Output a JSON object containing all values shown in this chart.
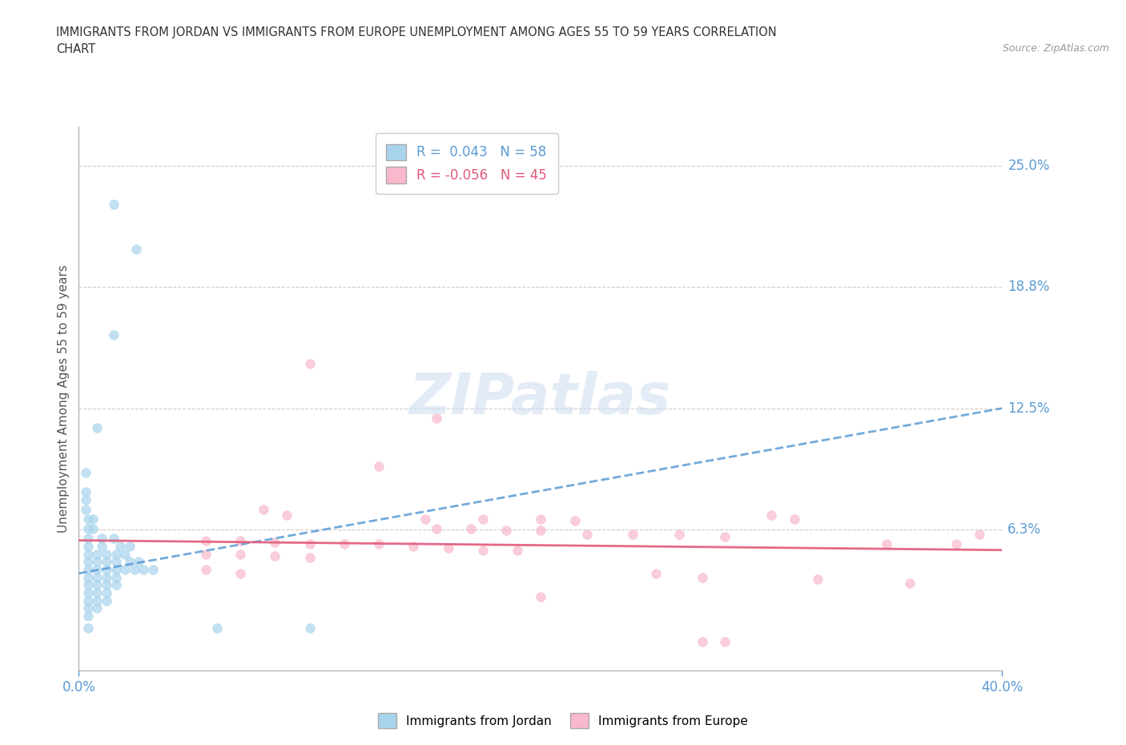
{
  "title_line1": "IMMIGRANTS FROM JORDAN VS IMMIGRANTS FROM EUROPE UNEMPLOYMENT AMONG AGES 55 TO 59 YEARS CORRELATION",
  "title_line2": "CHART",
  "source_text": "Source: ZipAtlas.com",
  "ylabel": "Unemployment Among Ages 55 to 59 years",
  "xmin": 0.0,
  "xmax": 0.4,
  "ymin": -0.01,
  "ymax": 0.27,
  "yticks": [
    0.0,
    0.0625,
    0.125,
    0.1875,
    0.25
  ],
  "ytick_labels": [
    "",
    "6.3%",
    "12.5%",
    "18.8%",
    "25.0%"
  ],
  "xtick_labels": [
    "0.0%",
    "40.0%"
  ],
  "xtick_positions": [
    0.0,
    0.4
  ],
  "jordan_color": "#a8d4ed",
  "europe_color": "#f9b8cb",
  "jordan_R": 0.043,
  "jordan_N": 58,
  "europe_R": -0.056,
  "europe_N": 45,
  "jordan_trend_color": "#5b9bd5",
  "europe_trend_color": "#e05a7a",
  "grid_color": "#cccccc",
  "background_color": "#ffffff",
  "jordan_trend": [
    0.0,
    0.04,
    0.4,
    0.125
  ],
  "europe_trend": [
    0.0,
    0.057,
    0.4,
    0.052
  ],
  "jordan_scatter": [
    [
      0.015,
      0.23
    ],
    [
      0.025,
      0.207
    ],
    [
      0.015,
      0.163
    ],
    [
      0.008,
      0.115
    ],
    [
      0.003,
      0.092
    ],
    [
      0.003,
      0.082
    ],
    [
      0.003,
      0.078
    ],
    [
      0.003,
      0.073
    ],
    [
      0.004,
      0.068
    ],
    [
      0.006,
      0.068
    ],
    [
      0.006,
      0.063
    ],
    [
      0.004,
      0.063
    ],
    [
      0.004,
      0.058
    ],
    [
      0.01,
      0.058
    ],
    [
      0.015,
      0.058
    ],
    [
      0.01,
      0.054
    ],
    [
      0.018,
      0.054
    ],
    [
      0.022,
      0.054
    ],
    [
      0.004,
      0.054
    ],
    [
      0.004,
      0.05
    ],
    [
      0.008,
      0.05
    ],
    [
      0.012,
      0.05
    ],
    [
      0.016,
      0.05
    ],
    [
      0.02,
      0.05
    ],
    [
      0.004,
      0.046
    ],
    [
      0.008,
      0.046
    ],
    [
      0.012,
      0.046
    ],
    [
      0.016,
      0.046
    ],
    [
      0.022,
      0.046
    ],
    [
      0.026,
      0.046
    ],
    [
      0.004,
      0.042
    ],
    [
      0.008,
      0.042
    ],
    [
      0.012,
      0.042
    ],
    [
      0.016,
      0.042
    ],
    [
      0.02,
      0.042
    ],
    [
      0.024,
      0.042
    ],
    [
      0.028,
      0.042
    ],
    [
      0.032,
      0.042
    ],
    [
      0.004,
      0.038
    ],
    [
      0.008,
      0.038
    ],
    [
      0.012,
      0.038
    ],
    [
      0.016,
      0.038
    ],
    [
      0.004,
      0.034
    ],
    [
      0.008,
      0.034
    ],
    [
      0.012,
      0.034
    ],
    [
      0.016,
      0.034
    ],
    [
      0.004,
      0.03
    ],
    [
      0.008,
      0.03
    ],
    [
      0.012,
      0.03
    ],
    [
      0.004,
      0.026
    ],
    [
      0.008,
      0.026
    ],
    [
      0.012,
      0.026
    ],
    [
      0.004,
      0.022
    ],
    [
      0.008,
      0.022
    ],
    [
      0.004,
      0.018
    ],
    [
      0.004,
      0.012
    ],
    [
      0.06,
      0.012
    ],
    [
      0.1,
      0.012
    ]
  ],
  "europe_scatter": [
    [
      0.1,
      0.148
    ],
    [
      0.155,
      0.12
    ],
    [
      0.13,
      0.095
    ],
    [
      0.08,
      0.073
    ],
    [
      0.09,
      0.07
    ],
    [
      0.15,
      0.068
    ],
    [
      0.175,
      0.068
    ],
    [
      0.2,
      0.068
    ],
    [
      0.215,
      0.067
    ],
    [
      0.155,
      0.063
    ],
    [
      0.17,
      0.063
    ],
    [
      0.185,
      0.062
    ],
    [
      0.2,
      0.062
    ],
    [
      0.22,
      0.06
    ],
    [
      0.24,
      0.06
    ],
    [
      0.26,
      0.06
    ],
    [
      0.28,
      0.059
    ],
    [
      0.055,
      0.057
    ],
    [
      0.07,
      0.057
    ],
    [
      0.085,
      0.056
    ],
    [
      0.1,
      0.055
    ],
    [
      0.115,
      0.055
    ],
    [
      0.13,
      0.055
    ],
    [
      0.145,
      0.054
    ],
    [
      0.16,
      0.053
    ],
    [
      0.175,
      0.052
    ],
    [
      0.19,
      0.052
    ],
    [
      0.055,
      0.05
    ],
    [
      0.07,
      0.05
    ],
    [
      0.085,
      0.049
    ],
    [
      0.1,
      0.048
    ],
    [
      0.3,
      0.07
    ],
    [
      0.31,
      0.068
    ],
    [
      0.35,
      0.055
    ],
    [
      0.38,
      0.055
    ],
    [
      0.25,
      0.04
    ],
    [
      0.27,
      0.038
    ],
    [
      0.32,
      0.037
    ],
    [
      0.36,
      0.035
    ],
    [
      0.39,
      0.06
    ],
    [
      0.055,
      0.042
    ],
    [
      0.07,
      0.04
    ],
    [
      0.2,
      0.028
    ],
    [
      0.28,
      0.005
    ],
    [
      0.27,
      0.005
    ]
  ]
}
